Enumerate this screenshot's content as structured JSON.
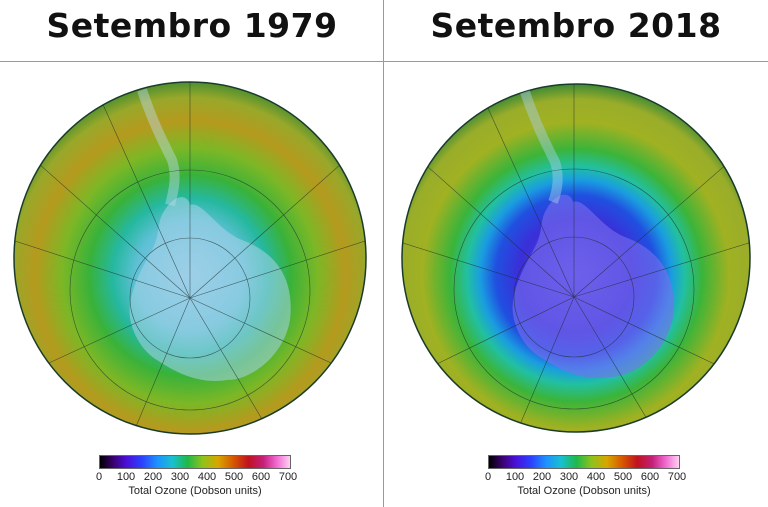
{
  "panels": [
    {
      "title": "Setembro 1979",
      "colorbar": {
        "ticks": [
          "0",
          "100",
          "200",
          "300",
          "400",
          "500",
          "600",
          "700"
        ],
        "label": "Total Ozone (Dobson units)"
      },
      "colors": {
        "rim": "#b8861c",
        "mid": "#5cb22a",
        "inner": "#2fc3b8",
        "center": "#7ec7e0"
      }
    },
    {
      "title": "Setembro 2018",
      "colorbar": {
        "ticks": [
          "0",
          "100",
          "200",
          "300",
          "400",
          "500",
          "600",
          "700"
        ],
        "label": "Total Ozone (Dobson units)"
      },
      "colors": {
        "rim": "#a8a020",
        "mid": "#2fb84a",
        "inner": "#1a70d8",
        "center": "#5040e0"
      }
    }
  ]
}
